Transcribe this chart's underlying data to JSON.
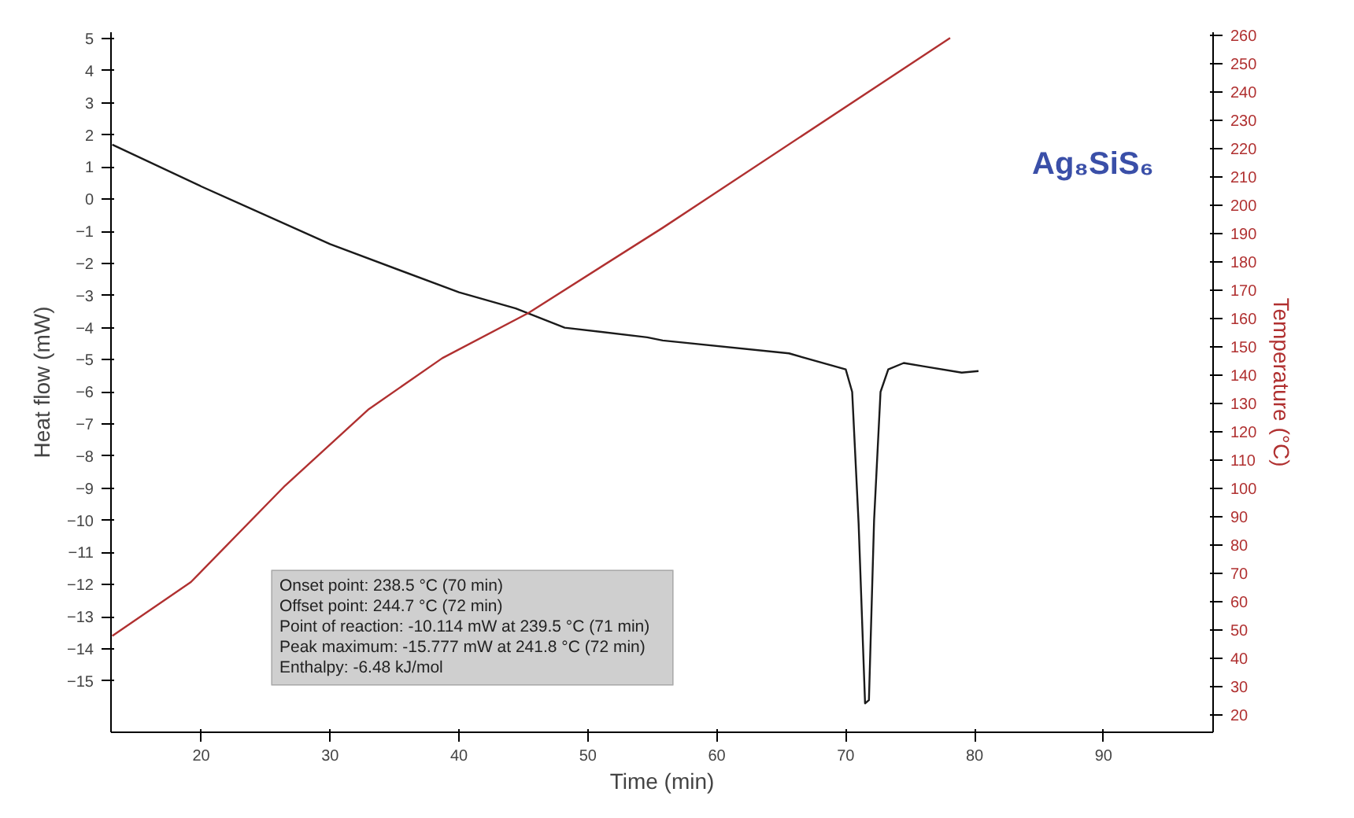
{
  "chart_data": {
    "type": "line",
    "title": "Ag₈SiS₆",
    "xlabel": "Time (min)",
    "ylabel": "Heat flow (mW)",
    "y2label": "Temperature (°C)",
    "xlim": [
      13,
      98.5
    ],
    "xticks": [
      20,
      30,
      40,
      50,
      60,
      70,
      80,
      90
    ],
    "ylim": [
      -16.6,
      5.2
    ],
    "yticks": [
      -15,
      -14,
      -13,
      -12,
      -11,
      -10,
      -9,
      -8,
      -7,
      -6,
      -5,
      -4,
      -3,
      -2,
      -1,
      0,
      1,
      2,
      3,
      4,
      5
    ],
    "y2lim": [
      14,
      261
    ],
    "y2ticks": [
      20,
      30,
      40,
      50,
      60,
      70,
      80,
      90,
      100,
      110,
      120,
      130,
      140,
      150,
      160,
      170,
      180,
      190,
      200,
      210,
      220,
      230,
      240,
      250,
      260
    ],
    "grid": false,
    "series": [
      {
        "color": "#1a1a1a",
        "x": [
          13.1,
          20,
          30,
          40,
          44.4,
          48.2,
          54.6,
          55.8,
          65.6,
          70.0,
          70.5,
          71.0,
          71.5,
          71.8,
          72.2,
          72.7,
          73.3,
          74.5,
          76,
          79,
          80.3
        ],
        "values": [
          1.7,
          0.4,
          -1.4,
          -2.9,
          -3.4,
          -4.0,
          -4.3,
          -4.4,
          -4.8,
          -5.3,
          -6.0,
          -10.1,
          -15.7,
          -15.6,
          -10.0,
          -6.0,
          -5.3,
          -5.1,
          -5.2,
          -5.4,
          -5.35
        ]
      },
      {
        "color": "#b03030",
        "axis": "y2",
        "x": [
          13.1,
          19.2,
          26.5,
          33,
          38.7,
          45.4,
          55.8,
          78.1
        ],
        "values": [
          48,
          67,
          101,
          128,
          146,
          162,
          192,
          259
        ]
      }
    ],
    "annotations": [
      "Onset point: 238.5 °C (70 min)",
      "Offset point: 244.7 °C (72 min)",
      "Point of reaction: -10.114 mW at 239.5 °C (71 min)",
      "Peak maximum: -15.777 mW at 241.8 °C (72 min)",
      "Enthalpy: -6.48 kJ/mol"
    ]
  }
}
